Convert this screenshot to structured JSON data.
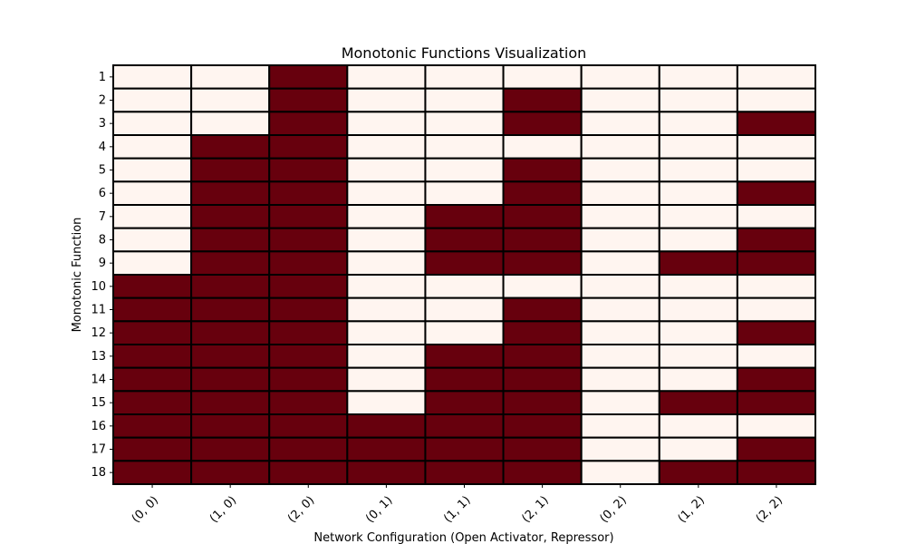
{
  "colors": {
    "off": "#fff5f0",
    "on": "#67000d",
    "grid": "#000000"
  },
  "chart_data": {
    "type": "heatmap",
    "title": "Monotonic Functions Visualization",
    "xlabel": "Network Configuration (Open Activator, Repressor)",
    "ylabel": "Monotonic Function",
    "x_categories": [
      "(0, 0)",
      "(1, 0)",
      "(2, 0)",
      "(0, 1)",
      "(1, 1)",
      "(2, 1)",
      "(0, 2)",
      "(1, 2)",
      "(2, 2)"
    ],
    "y_categories": [
      "1",
      "2",
      "3",
      "4",
      "5",
      "6",
      "7",
      "8",
      "9",
      "10",
      "11",
      "12",
      "13",
      "14",
      "15",
      "16",
      "17",
      "18"
    ],
    "values": [
      [
        0,
        0,
        1,
        0,
        0,
        0,
        0,
        0,
        0
      ],
      [
        0,
        0,
        1,
        0,
        0,
        1,
        0,
        0,
        0
      ],
      [
        0,
        0,
        1,
        0,
        0,
        1,
        0,
        0,
        1
      ],
      [
        0,
        1,
        1,
        0,
        0,
        0,
        0,
        0,
        0
      ],
      [
        0,
        1,
        1,
        0,
        0,
        1,
        0,
        0,
        0
      ],
      [
        0,
        1,
        1,
        0,
        0,
        1,
        0,
        0,
        1
      ],
      [
        0,
        1,
        1,
        0,
        1,
        1,
        0,
        0,
        0
      ],
      [
        0,
        1,
        1,
        0,
        1,
        1,
        0,
        0,
        1
      ],
      [
        0,
        1,
        1,
        0,
        1,
        1,
        0,
        1,
        1
      ],
      [
        1,
        1,
        1,
        0,
        0,
        0,
        0,
        0,
        0
      ],
      [
        1,
        1,
        1,
        0,
        0,
        1,
        0,
        0,
        0
      ],
      [
        1,
        1,
        1,
        0,
        0,
        1,
        0,
        0,
        1
      ],
      [
        1,
        1,
        1,
        0,
        1,
        1,
        0,
        0,
        0
      ],
      [
        1,
        1,
        1,
        0,
        1,
        1,
        0,
        0,
        1
      ],
      [
        1,
        1,
        1,
        0,
        1,
        1,
        0,
        1,
        1
      ],
      [
        1,
        1,
        1,
        1,
        1,
        1,
        0,
        0,
        0
      ],
      [
        1,
        1,
        1,
        1,
        1,
        1,
        0,
        0,
        1
      ],
      [
        1,
        1,
        1,
        1,
        1,
        1,
        0,
        1,
        1
      ]
    ]
  }
}
